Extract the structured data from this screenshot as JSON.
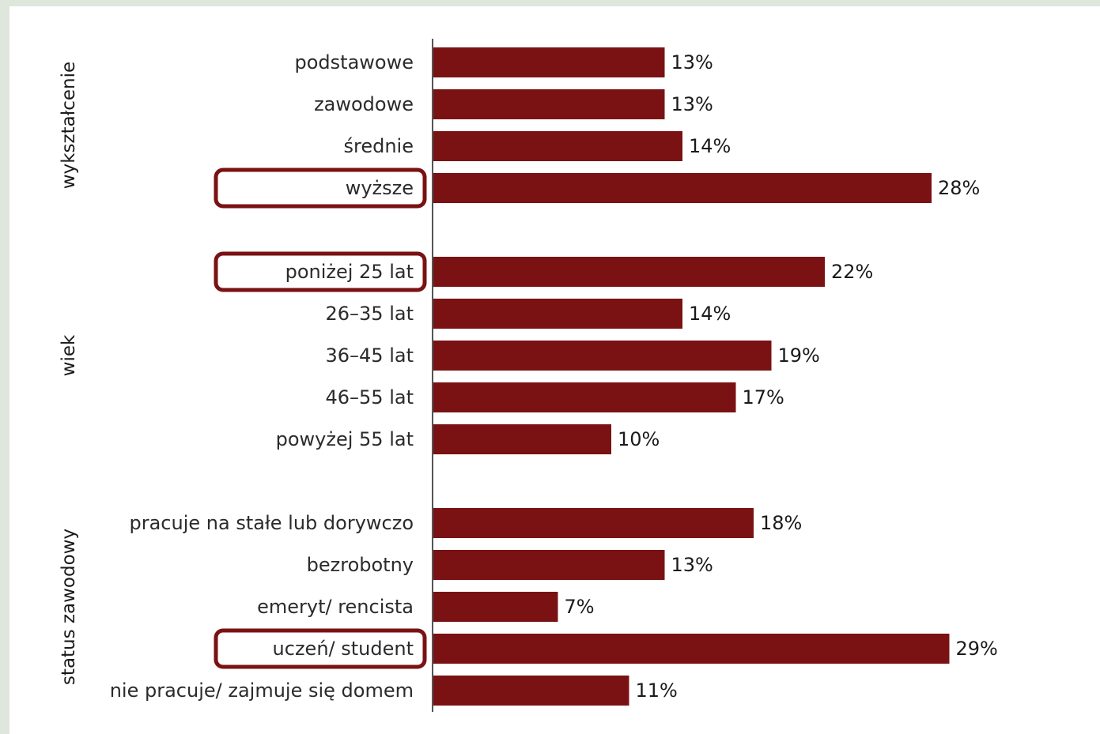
{
  "colors": {
    "bar": "#7a1213",
    "highlight_box": "#7a1213",
    "axis": "#555555",
    "background": "#dfe6dc",
    "panel": "#ffffff"
  },
  "chart_data": {
    "type": "bar",
    "orientation": "horizontal",
    "value_format": "percent",
    "xlim": [
      0,
      30
    ],
    "grid": false,
    "legend": "none",
    "groups": [
      {
        "name": "wykształcenie",
        "items": [
          {
            "label": "podstawowe",
            "value": 13,
            "value_label": "13%",
            "highlighted": false
          },
          {
            "label": "zawodowe",
            "value": 13,
            "value_label": "13%",
            "highlighted": false
          },
          {
            "label": "średnie",
            "value": 14,
            "value_label": "14%",
            "highlighted": false
          },
          {
            "label": "wyższe",
            "value": 28,
            "value_label": "28%",
            "highlighted": true
          }
        ]
      },
      {
        "name": "wiek",
        "items": [
          {
            "label": "poniżej 25 lat",
            "value": 22,
            "value_label": "22%",
            "highlighted": true
          },
          {
            "label": "26–35 lat",
            "value": 14,
            "value_label": "14%",
            "highlighted": false
          },
          {
            "label": "36–45 lat",
            "value": 19,
            "value_label": "19%",
            "highlighted": false
          },
          {
            "label": "46–55 lat",
            "value": 17,
            "value_label": "17%",
            "highlighted": false
          },
          {
            "label": "powyżej 55 lat",
            "value": 10,
            "value_label": "10%",
            "highlighted": false
          }
        ]
      },
      {
        "name": "status zawodowy",
        "items": [
          {
            "label": "pracuje na stałe lub dorywczo",
            "value": 18,
            "value_label": "18%",
            "highlighted": false
          },
          {
            "label": "bezrobotny",
            "value": 13,
            "value_label": "13%",
            "highlighted": false
          },
          {
            "label": "emeryt/ rencista",
            "value": 7,
            "value_label": "7%",
            "highlighted": false
          },
          {
            "label": "uczeń/ student",
            "value": 29,
            "value_label": "29%",
            "highlighted": true
          },
          {
            "label": "nie pracuje/ zajmuje się domem",
            "value": 11,
            "value_label": "11%",
            "highlighted": false
          }
        ]
      }
    ]
  }
}
